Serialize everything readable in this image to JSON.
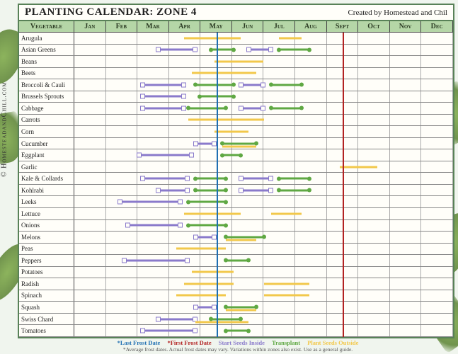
{
  "title": "PLANTING CALENDAR: ZONE 4",
  "credit": "Created by Homestead and Chil",
  "copyright": "© HomesteadandChill.com",
  "veg_header": "Vegetable",
  "months": [
    "Jan",
    "Feb",
    "Mar",
    "Apr",
    "May",
    "Jun",
    "Jul",
    "Aug",
    "Sept",
    "Oct",
    "Nov",
    "Dec"
  ],
  "colors": {
    "header_bg": "#b5d6a7",
    "border": "#588157",
    "last_frost": "#1f6fb2",
    "first_frost": "#b22222",
    "seeds_inside": "#8a7acb",
    "transplant": "#5fa843",
    "seeds_outside": "#f2c84b",
    "background": "#fffef9"
  },
  "frost": {
    "last_pct": 37.5,
    "first_pct": 70.8
  },
  "legend": {
    "last_frost": "*Last Frost Date",
    "first_frost": "*First Frost Date",
    "seeds_inside": "Start Seeds Inside",
    "transplant": "Transplant",
    "seeds_outside": "Plant Seeds Outside",
    "disclaimer": "*Average frost dates. Actual frost dates may vary. Variations within zones also exist. Use as a general guide."
  },
  "rows": [
    {
      "name": "Arugula",
      "bars": [
        {
          "t": "seedsoutside",
          "s": 29,
          "e": 44
        },
        {
          "t": "seedsoutside",
          "s": 54,
          "e": 60
        }
      ]
    },
    {
      "name": "Asian Greens",
      "bars": [
        {
          "t": "seedsinside",
          "s": 22,
          "e": 32
        },
        {
          "t": "transplant",
          "s": 36,
          "e": 42
        },
        {
          "t": "seedsinside",
          "s": 46,
          "e": 52
        },
        {
          "t": "transplant",
          "s": 54,
          "e": 62
        }
      ]
    },
    {
      "name": "Beans",
      "bars": [
        {
          "t": "seedsoutside",
          "s": 37,
          "e": 50
        }
      ]
    },
    {
      "name": "Beets",
      "bars": [
        {
          "t": "seedsoutside",
          "s": 31,
          "e": 48
        }
      ]
    },
    {
      "name": "Broccoli & Cauli",
      "bars": [
        {
          "t": "seedsinside",
          "s": 18,
          "e": 29
        },
        {
          "t": "transplant",
          "s": 32,
          "e": 42
        },
        {
          "t": "seedsinside",
          "s": 44,
          "e": 50
        },
        {
          "t": "transplant",
          "s": 52,
          "e": 60
        }
      ]
    },
    {
      "name": "Brussels Sprouts",
      "bars": [
        {
          "t": "seedsinside",
          "s": 18,
          "e": 29
        },
        {
          "t": "transplant",
          "s": 33,
          "e": 42
        }
      ]
    },
    {
      "name": "Cabbage",
      "bars": [
        {
          "t": "seedsinside",
          "s": 18,
          "e": 29
        },
        {
          "t": "transplant",
          "s": 30,
          "e": 40
        },
        {
          "t": "seedsinside",
          "s": 44,
          "e": 50
        },
        {
          "t": "transplant",
          "s": 52,
          "e": 60
        }
      ]
    },
    {
      "name": "Carrots",
      "bars": [
        {
          "t": "seedsoutside",
          "s": 30,
          "e": 50
        }
      ]
    },
    {
      "name": "Corn",
      "bars": [
        {
          "t": "seedsoutside",
          "s": 37,
          "e": 46
        }
      ]
    },
    {
      "name": "Cucumber",
      "bars": [
        {
          "t": "seedsinside",
          "s": 32,
          "e": 37
        },
        {
          "t": "transplant",
          "s": 39,
          "e": 48
        },
        {
          "t": "seedsoutside",
          "s": 39,
          "e": 48,
          "off": 4
        }
      ]
    },
    {
      "name": "Eggplant",
      "bars": [
        {
          "t": "seedsinside",
          "s": 17,
          "e": 31
        },
        {
          "t": "transplant",
          "s": 39,
          "e": 44
        }
      ]
    },
    {
      "name": "Garlic",
      "bars": [
        {
          "t": "seedsoutside",
          "s": 70,
          "e": 80
        }
      ]
    },
    {
      "name": "Kale & Collards",
      "bars": [
        {
          "t": "seedsinside",
          "s": 18,
          "e": 30
        },
        {
          "t": "transplant",
          "s": 32,
          "e": 40
        },
        {
          "t": "seedsinside",
          "s": 44,
          "e": 52
        },
        {
          "t": "transplant",
          "s": 54,
          "e": 62
        }
      ]
    },
    {
      "name": "Kohlrabi",
      "bars": [
        {
          "t": "seedsinside",
          "s": 22,
          "e": 30
        },
        {
          "t": "transplant",
          "s": 32,
          "e": 40
        },
        {
          "t": "seedsinside",
          "s": 44,
          "e": 52
        },
        {
          "t": "transplant",
          "s": 54,
          "e": 62
        }
      ]
    },
    {
      "name": "Leeks",
      "bars": [
        {
          "t": "seedsinside",
          "s": 12,
          "e": 28
        },
        {
          "t": "transplant",
          "s": 30,
          "e": 40
        }
      ]
    },
    {
      "name": "Lettuce",
      "bars": [
        {
          "t": "seedsoutside",
          "s": 29,
          "e": 44
        },
        {
          "t": "seedsoutside",
          "s": 52,
          "e": 60
        }
      ]
    },
    {
      "name": "Onions",
      "bars": [
        {
          "t": "seedsinside",
          "s": 14,
          "e": 28
        },
        {
          "t": "transplant",
          "s": 30,
          "e": 40
        }
      ]
    },
    {
      "name": "Melons",
      "bars": [
        {
          "t": "seedsinside",
          "s": 32,
          "e": 37
        },
        {
          "t": "transplant",
          "s": 40,
          "e": 50
        },
        {
          "t": "seedsoutside",
          "s": 40,
          "e": 48,
          "off": 4
        }
      ]
    },
    {
      "name": "Peas",
      "bars": [
        {
          "t": "seedsoutside",
          "s": 27,
          "e": 40
        }
      ]
    },
    {
      "name": "Peppers",
      "bars": [
        {
          "t": "seedsinside",
          "s": 13,
          "e": 30
        },
        {
          "t": "transplant",
          "s": 40,
          "e": 46
        }
      ]
    },
    {
      "name": "Potatoes",
      "bars": [
        {
          "t": "seedsoutside",
          "s": 31,
          "e": 42
        }
      ]
    },
    {
      "name": "Radish",
      "bars": [
        {
          "t": "seedsoutside",
          "s": 29,
          "e": 42
        },
        {
          "t": "seedsoutside",
          "s": 50,
          "e": 62
        }
      ]
    },
    {
      "name": "Spinach",
      "bars": [
        {
          "t": "seedsoutside",
          "s": 27,
          "e": 40
        },
        {
          "t": "seedsoutside",
          "s": 50,
          "e": 62
        }
      ]
    },
    {
      "name": "Squash",
      "bars": [
        {
          "t": "seedsinside",
          "s": 32,
          "e": 37
        },
        {
          "t": "transplant",
          "s": 40,
          "e": 48
        },
        {
          "t": "seedsoutside",
          "s": 40,
          "e": 48,
          "off": 4
        }
      ]
    },
    {
      "name": "Swiss Chard",
      "bars": [
        {
          "t": "seedsinside",
          "s": 22,
          "e": 32
        },
        {
          "t": "seedsoutside",
          "s": 32,
          "e": 46,
          "off": 4
        },
        {
          "t": "transplant",
          "s": 36,
          "e": 44
        }
      ]
    },
    {
      "name": "Tomatoes",
      "bars": [
        {
          "t": "seedsinside",
          "s": 18,
          "e": 32
        },
        {
          "t": "transplant",
          "s": 40,
          "e": 46
        }
      ]
    }
  ]
}
